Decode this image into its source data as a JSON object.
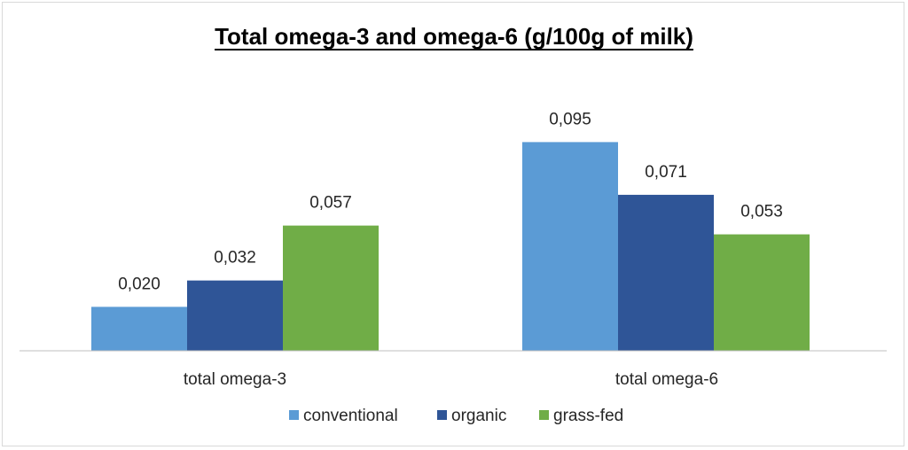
{
  "chart_data": {
    "type": "bar",
    "title": "Total omega-3 and omega-6 (g/100g of milk)",
    "categories": [
      "total omega-3",
      "total omega-6"
    ],
    "series": [
      {
        "name": "conventional",
        "color": "#5b9bd5",
        "values": [
          0.02,
          0.095
        ],
        "labels": [
          "0,020",
          "0,095"
        ]
      },
      {
        "name": "organic",
        "color": "#2f5597",
        "values": [
          0.032,
          0.071
        ],
        "labels": [
          "0,032",
          "0,071"
        ]
      },
      {
        "name": "grass-fed",
        "color": "#70ad47",
        "values": [
          0.057,
          0.053
        ],
        "labels": [
          "0,057",
          "0,053"
        ]
      }
    ],
    "ylim": [
      0,
      0.1
    ],
    "grid": false,
    "legend_position": "bottom"
  }
}
